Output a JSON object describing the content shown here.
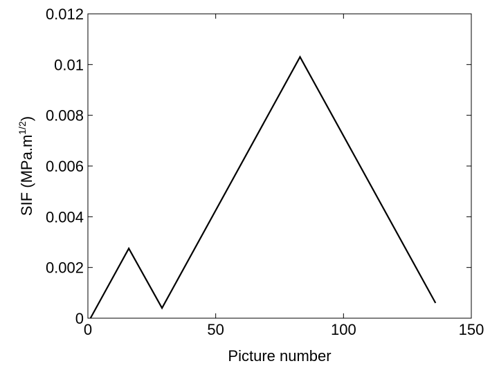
{
  "chart_data": {
    "type": "line",
    "title": "",
    "xlabel": "Picture number",
    "ylabel_main": "SIF (MPa.m",
    "ylabel_sup": "1/2",
    "ylabel_close": ")",
    "xlim": [
      0,
      150
    ],
    "ylim": [
      0,
      0.012
    ],
    "xticks": [
      0,
      50,
      100,
      150
    ],
    "xtick_labels": [
      "0",
      "50",
      "100",
      "150"
    ],
    "yticks": [
      0,
      0.002,
      0.004,
      0.006,
      0.008,
      0.01,
      0.012
    ],
    "ytick_labels": [
      "0",
      "0.002",
      "0.004",
      "0.006",
      "0.008",
      "0.01",
      "0.012"
    ],
    "grid": false,
    "series": [
      {
        "color": "#000000",
        "x": [
          1,
          16,
          29,
          83,
          136
        ],
        "y": [
          0,
          0.00275,
          0.0004,
          0.0103,
          0.0006
        ]
      }
    ]
  }
}
